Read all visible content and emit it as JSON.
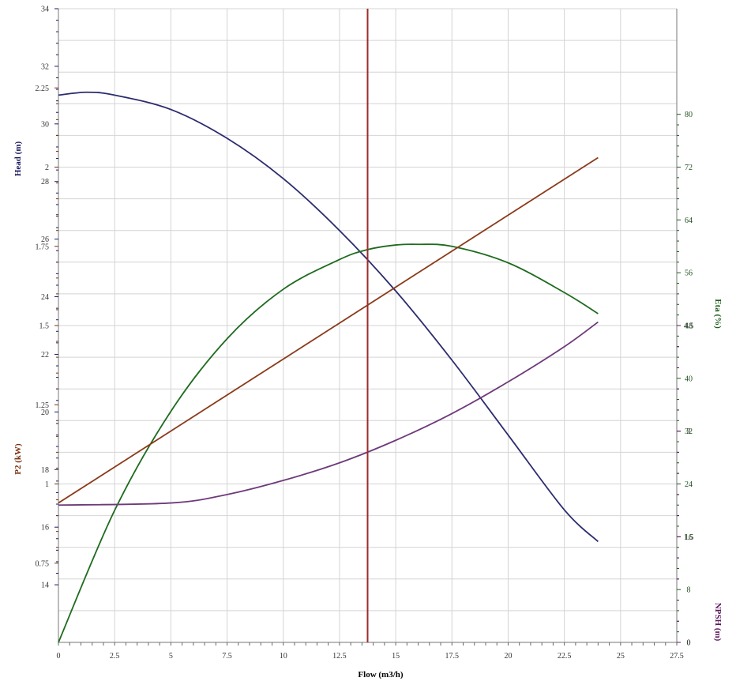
{
  "chart_data": {
    "type": "line",
    "title": "",
    "x_axis": {
      "label": "Flow (m3/h)",
      "range": [
        0,
        27.5
      ],
      "ticks": [
        0,
        2.5,
        5,
        7.5,
        10,
        12.5,
        15,
        17.5,
        20,
        22.5,
        25,
        27.5
      ],
      "tick_labels": [
        "0",
        "2.5",
        "5",
        "7.5",
        "10",
        "12.5",
        "15",
        "17.5",
        "20",
        "22.5",
        "25",
        "27.5"
      ]
    },
    "axes": {
      "head": {
        "label": "Head (m)",
        "color": "#1a1a5e",
        "range": [
          12,
          34
        ],
        "ticks": [
          14,
          16,
          18,
          20,
          22,
          24,
          26,
          28,
          30,
          32,
          34
        ],
        "tick_labels": [
          "14",
          "16",
          "18",
          "20",
          "22",
          "24",
          "26",
          "28",
          "30",
          "32",
          "34"
        ]
      },
      "p2": {
        "label": "P2 (kW)",
        "color": "#7a2e0e",
        "range": [
          0.5,
          2.5
        ],
        "ticks": [
          0.75,
          1,
          1.25,
          1.5,
          1.75,
          2,
          2.25
        ],
        "tick_labels": [
          "0.75",
          "1",
          "1.25",
          "1.5",
          "1.75",
          "2",
          "2.25"
        ]
      },
      "eta": {
        "label": "Eta (%)",
        "color": "#1a5e1a",
        "range": [
          0,
          96
        ],
        "ticks": [
          0,
          8,
          16,
          24,
          32,
          40,
          48,
          56,
          64,
          72,
          80
        ],
        "tick_labels": [
          "0",
          "8",
          "16",
          "24",
          "32",
          "40",
          "48",
          "56",
          "64",
          "72",
          "80"
        ]
      },
      "npsh": {
        "label": "NPSH (m)",
        "color": "#5e1a5e",
        "range": [
          0,
          9
        ],
        "ticks": [
          0,
          1.5,
          3,
          4.5
        ],
        "tick_labels": [
          "0",
          "1.5",
          "3",
          "4.5"
        ]
      }
    },
    "series": [
      {
        "name": "Head",
        "axis": "head",
        "color": "#2b2b6e",
        "x": [
          0,
          1.25,
          2.5,
          5,
          7.5,
          10,
          12.5,
          15,
          17.5,
          20,
          22.5,
          24
        ],
        "y": [
          31.0,
          31.1,
          31.0,
          30.5,
          29.5,
          28.1,
          26.3,
          24.2,
          21.8,
          19.2,
          16.6,
          15.5
        ]
      },
      {
        "name": "Eta",
        "axis": "eta",
        "color": "#1e6b1e",
        "x": [
          0,
          2.5,
          5,
          7.5,
          10,
          12.5,
          13.75,
          15,
          16,
          17.5,
          20,
          22.5,
          24
        ],
        "y": [
          0,
          20,
          35,
          46,
          53.5,
          58,
          59.5,
          60.2,
          60.3,
          60,
          57.5,
          53,
          49.8
        ]
      },
      {
        "name": "P2",
        "axis": "p2",
        "color": "#8b3a1a",
        "x": [
          0,
          24
        ],
        "y": [
          0.94,
          2.03
        ]
      },
      {
        "name": "NPSH",
        "axis": "npsh",
        "color": "#6e3a7a",
        "x": [
          0,
          5,
          7.5,
          10,
          12.5,
          15,
          17.5,
          20,
          22.5,
          24
        ],
        "y": [
          1.95,
          1.98,
          2.1,
          2.3,
          2.55,
          2.87,
          3.25,
          3.7,
          4.2,
          4.55
        ]
      }
    ],
    "operating_point": {
      "x": 13.75,
      "color": "#9b2b2b"
    },
    "grid": true
  }
}
